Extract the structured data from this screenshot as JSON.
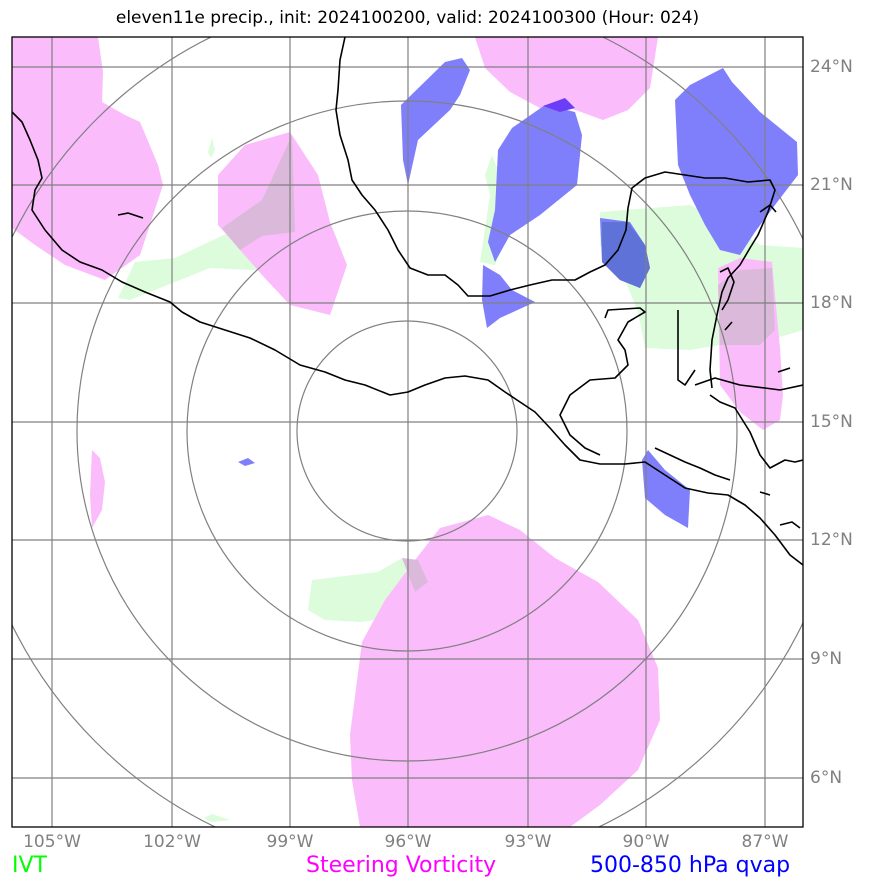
{
  "title": "eleven11e precip., init: 2024100200, valid: 2024100300 (Hour: 024)",
  "lon_labels": [
    "105°W",
    "102°W",
    "99°W",
    "96°W",
    "93°W",
    "90°W",
    "87°W"
  ],
  "lat_labels": [
    "24°N",
    "21°N",
    "18°N",
    "15°N",
    "12°N",
    "9°N",
    "6°N"
  ],
  "legend": [
    {
      "label": "IVT",
      "color": "#00ff00"
    },
    {
      "label": "Steering Vorticity",
      "color": "#ff00ff"
    },
    {
      "label": "500-850 hPa qvap",
      "color": "#0000ff"
    }
  ],
  "colors": {
    "ivt_fill": "#dcfcdc",
    "vorticity_fill": "#fbbcfb",
    "qvap_fill": "#7f7ffb",
    "overlap_fill": "#dbb9db",
    "grid": "#808080",
    "coastline": "#000000"
  }
}
